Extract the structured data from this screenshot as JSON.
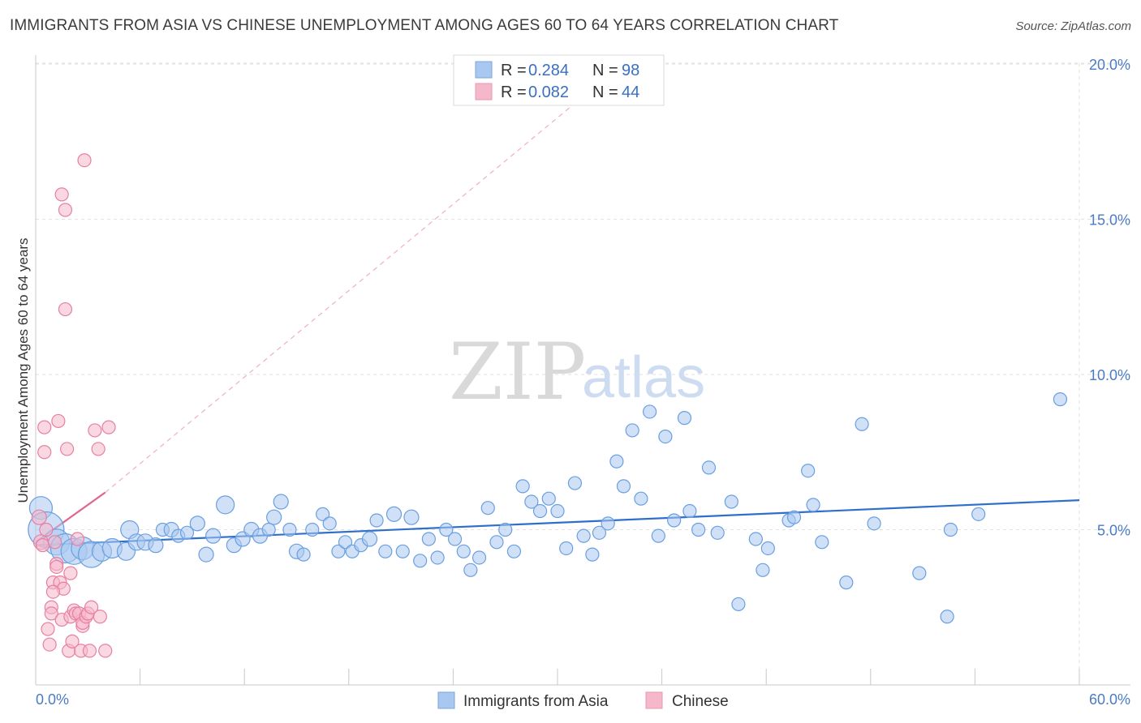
{
  "title": "IMMIGRANTS FROM ASIA VS CHINESE UNEMPLOYMENT AMONG AGES 60 TO 64 YEARS CORRELATION CHART",
  "source": "Source: ZipAtlas.com",
  "watermark": {
    "part1": "ZIP",
    "part2": "atlas"
  },
  "legend": {
    "rows": [
      {
        "r_label": "R = ",
        "r_value": "0.284",
        "n_label": "N = ",
        "n_value": "98",
        "color": "#a9c8f0"
      },
      {
        "r_label": "R = ",
        "r_value": "0.082",
        "n_label": "N = ",
        "n_value": "44",
        "color": "#f5b8cb"
      }
    ]
  },
  "bottom_legend": [
    {
      "label": "Immigrants from Asia",
      "color": "#a9c8f0"
    },
    {
      "label": "Chinese",
      "color": "#f5b8cb"
    }
  ],
  "chart_data": {
    "type": "scatter",
    "title": "IMMIGRANTS FROM ASIA VS CHINESE UNEMPLOYMENT AMONG AGES 60 TO 64 YEARS CORRELATION CHART",
    "xlabel": "",
    "ylabel": "Unemployment Among Ages 60 to 64 years",
    "xlim": [
      0,
      60
    ],
    "ylim": [
      0,
      20.5
    ],
    "x_tick_labels": [
      "0.0%",
      "60.0%"
    ],
    "y_ticks": [
      5,
      10,
      15,
      20
    ],
    "y_tick_labels": [
      "5.0%",
      "10.0%",
      "15.0%",
      "20.0%"
    ],
    "grid": true,
    "legend_position": "top-center",
    "series": [
      {
        "name": "Immigrants from Asia",
        "color": "#6a9fe0",
        "fill": "#a9c8f0",
        "trend": {
          "x": [
            0,
            60
          ],
          "y": [
            4.5,
            5.95
          ],
          "style": "solid"
        },
        "points": [
          [
            0.3,
            5.7,
            14
          ],
          [
            0.6,
            5.0,
            22
          ],
          [
            1.2,
            4.6,
            16
          ],
          [
            1.7,
            4.4,
            18
          ],
          [
            2.2,
            4.3,
            16
          ],
          [
            2.7,
            4.4,
            14
          ],
          [
            3.2,
            4.2,
            16
          ],
          [
            3.8,
            4.3,
            12
          ],
          [
            4.4,
            4.4,
            12
          ],
          [
            5.2,
            4.3,
            11
          ],
          [
            5.4,
            5.0,
            11
          ],
          [
            5.8,
            4.6,
            10
          ],
          [
            6.3,
            4.6,
            10
          ],
          [
            6.9,
            4.5,
            9
          ],
          [
            7.3,
            5.0,
            8
          ],
          [
            7.8,
            5.0,
            9
          ],
          [
            8.2,
            4.8,
            8
          ],
          [
            8.7,
            4.9,
            8
          ],
          [
            9.3,
            5.2,
            9
          ],
          [
            9.8,
            4.2,
            9
          ],
          [
            10.2,
            4.8,
            9
          ],
          [
            10.9,
            5.8,
            11
          ],
          [
            11.4,
            4.5,
            9
          ],
          [
            11.9,
            4.7,
            9
          ],
          [
            12.4,
            5.0,
            9
          ],
          [
            12.9,
            4.8,
            9
          ],
          [
            13.4,
            5.0,
            8
          ],
          [
            13.7,
            5.4,
            9
          ],
          [
            14.1,
            5.9,
            9
          ],
          [
            14.6,
            5.0,
            8
          ],
          [
            15.0,
            4.3,
            9
          ],
          [
            15.4,
            4.2,
            8
          ],
          [
            15.9,
            5.0,
            8
          ],
          [
            16.5,
            5.5,
            8
          ],
          [
            16.9,
            5.2,
            8
          ],
          [
            17.4,
            4.3,
            8
          ],
          [
            17.8,
            4.6,
            8
          ],
          [
            18.2,
            4.3,
            8
          ],
          [
            18.7,
            4.5,
            8
          ],
          [
            19.2,
            4.7,
            9
          ],
          [
            19.6,
            5.3,
            8
          ],
          [
            20.1,
            4.3,
            8
          ],
          [
            20.6,
            5.5,
            9
          ],
          [
            21.1,
            4.3,
            8
          ],
          [
            21.6,
            5.4,
            9
          ],
          [
            22.1,
            4.0,
            8
          ],
          [
            22.6,
            4.7,
            8
          ],
          [
            23.1,
            4.1,
            8
          ],
          [
            23.6,
            5.0,
            8
          ],
          [
            24.1,
            4.7,
            8
          ],
          [
            24.6,
            4.3,
            8
          ],
          [
            25.0,
            3.7,
            8
          ],
          [
            25.5,
            4.1,
            8
          ],
          [
            26.0,
            5.7,
            8
          ],
          [
            26.5,
            4.6,
            8
          ],
          [
            27.0,
            5.0,
            8
          ],
          [
            27.5,
            4.3,
            8
          ],
          [
            28.0,
            6.4,
            8
          ],
          [
            28.5,
            5.9,
            8
          ],
          [
            29.0,
            5.6,
            8
          ],
          [
            29.5,
            6.0,
            8
          ],
          [
            30.0,
            5.6,
            8
          ],
          [
            30.5,
            4.4,
            8
          ],
          [
            31.0,
            6.5,
            8
          ],
          [
            31.5,
            4.8,
            8
          ],
          [
            32.0,
            4.2,
            8
          ],
          [
            32.4,
            4.9,
            8
          ],
          [
            32.9,
            5.2,
            8
          ],
          [
            33.4,
            7.2,
            8
          ],
          [
            33.8,
            6.4,
            8
          ],
          [
            34.3,
            8.2,
            8
          ],
          [
            34.8,
            6.0,
            8
          ],
          [
            35.3,
            8.8,
            8
          ],
          [
            35.8,
            4.8,
            8
          ],
          [
            36.2,
            8.0,
            8
          ],
          [
            36.7,
            5.3,
            8
          ],
          [
            37.3,
            8.6,
            8
          ],
          [
            37.6,
            5.6,
            8
          ],
          [
            38.1,
            5.0,
            8
          ],
          [
            38.7,
            7.0,
            8
          ],
          [
            39.2,
            4.9,
            8
          ],
          [
            40.0,
            5.9,
            8
          ],
          [
            40.4,
            2.6,
            8
          ],
          [
            41.4,
            4.7,
            8
          ],
          [
            41.8,
            3.7,
            8
          ],
          [
            42.1,
            4.4,
            8
          ],
          [
            43.3,
            5.3,
            8
          ],
          [
            43.6,
            5.4,
            8
          ],
          [
            44.4,
            6.9,
            8
          ],
          [
            44.7,
            5.8,
            8
          ],
          [
            45.2,
            4.6,
            8
          ],
          [
            46.6,
            3.3,
            8
          ],
          [
            47.5,
            8.4,
            8
          ],
          [
            48.2,
            5.2,
            8
          ],
          [
            50.8,
            3.6,
            8
          ],
          [
            52.4,
            2.2,
            8
          ],
          [
            52.6,
            5.0,
            8
          ],
          [
            54.2,
            5.5,
            8
          ],
          [
            58.9,
            9.2,
            8
          ]
        ]
      },
      {
        "name": "Chinese",
        "color": "#e87fa3",
        "fill": "#f5b8cb",
        "trend": {
          "x": [
            0,
            4.0
          ],
          "y": [
            4.6,
            6.2
          ],
          "style": "solid",
          "extension": {
            "x": [
              4.0,
              32.0
            ],
            "y": [
              6.2,
              19.2
            ],
            "style": "dashed"
          }
        },
        "points": [
          [
            0.2,
            5.4,
            9
          ],
          [
            0.3,
            4.6,
            9
          ],
          [
            0.4,
            4.5,
            8
          ],
          [
            0.5,
            8.3,
            8
          ],
          [
            0.5,
            7.5,
            8
          ],
          [
            0.6,
            5.0,
            8
          ],
          [
            0.7,
            1.8,
            8
          ],
          [
            0.8,
            1.3,
            8
          ],
          [
            0.9,
            2.5,
            8
          ],
          [
            0.9,
            2.3,
            8
          ],
          [
            1.0,
            3.3,
            8
          ],
          [
            1.1,
            4.6,
            8
          ],
          [
            1.2,
            3.9,
            8
          ],
          [
            1.2,
            3.8,
            8
          ],
          [
            1.3,
            8.5,
            8
          ],
          [
            1.4,
            3.3,
            8
          ],
          [
            1.5,
            15.8,
            8
          ],
          [
            1.5,
            2.1,
            8
          ],
          [
            1.6,
            3.1,
            8
          ],
          [
            1.7,
            12.1,
            8
          ],
          [
            1.7,
            15.3,
            8
          ],
          [
            1.8,
            7.6,
            8
          ],
          [
            1.9,
            1.1,
            8
          ],
          [
            2.0,
            3.6,
            8
          ],
          [
            2.0,
            2.2,
            8
          ],
          [
            2.1,
            1.4,
            8
          ],
          [
            2.2,
            2.4,
            8
          ],
          [
            2.3,
            2.3,
            8
          ],
          [
            2.4,
            4.7,
            8
          ],
          [
            2.5,
            2.3,
            8
          ],
          [
            2.6,
            1.1,
            8
          ],
          [
            2.7,
            1.9,
            8
          ],
          [
            2.7,
            2.0,
            8
          ],
          [
            2.8,
            16.9,
            8
          ],
          [
            2.9,
            2.2,
            8
          ],
          [
            3.0,
            2.3,
            8
          ],
          [
            3.1,
            1.1,
            8
          ],
          [
            3.2,
            2.5,
            8
          ],
          [
            3.4,
            8.2,
            8
          ],
          [
            3.6,
            7.6,
            8
          ],
          [
            3.7,
            2.2,
            8
          ],
          [
            4.0,
            1.1,
            8
          ],
          [
            4.2,
            8.3,
            8
          ],
          [
            1.0,
            3.0,
            8
          ]
        ]
      }
    ]
  }
}
